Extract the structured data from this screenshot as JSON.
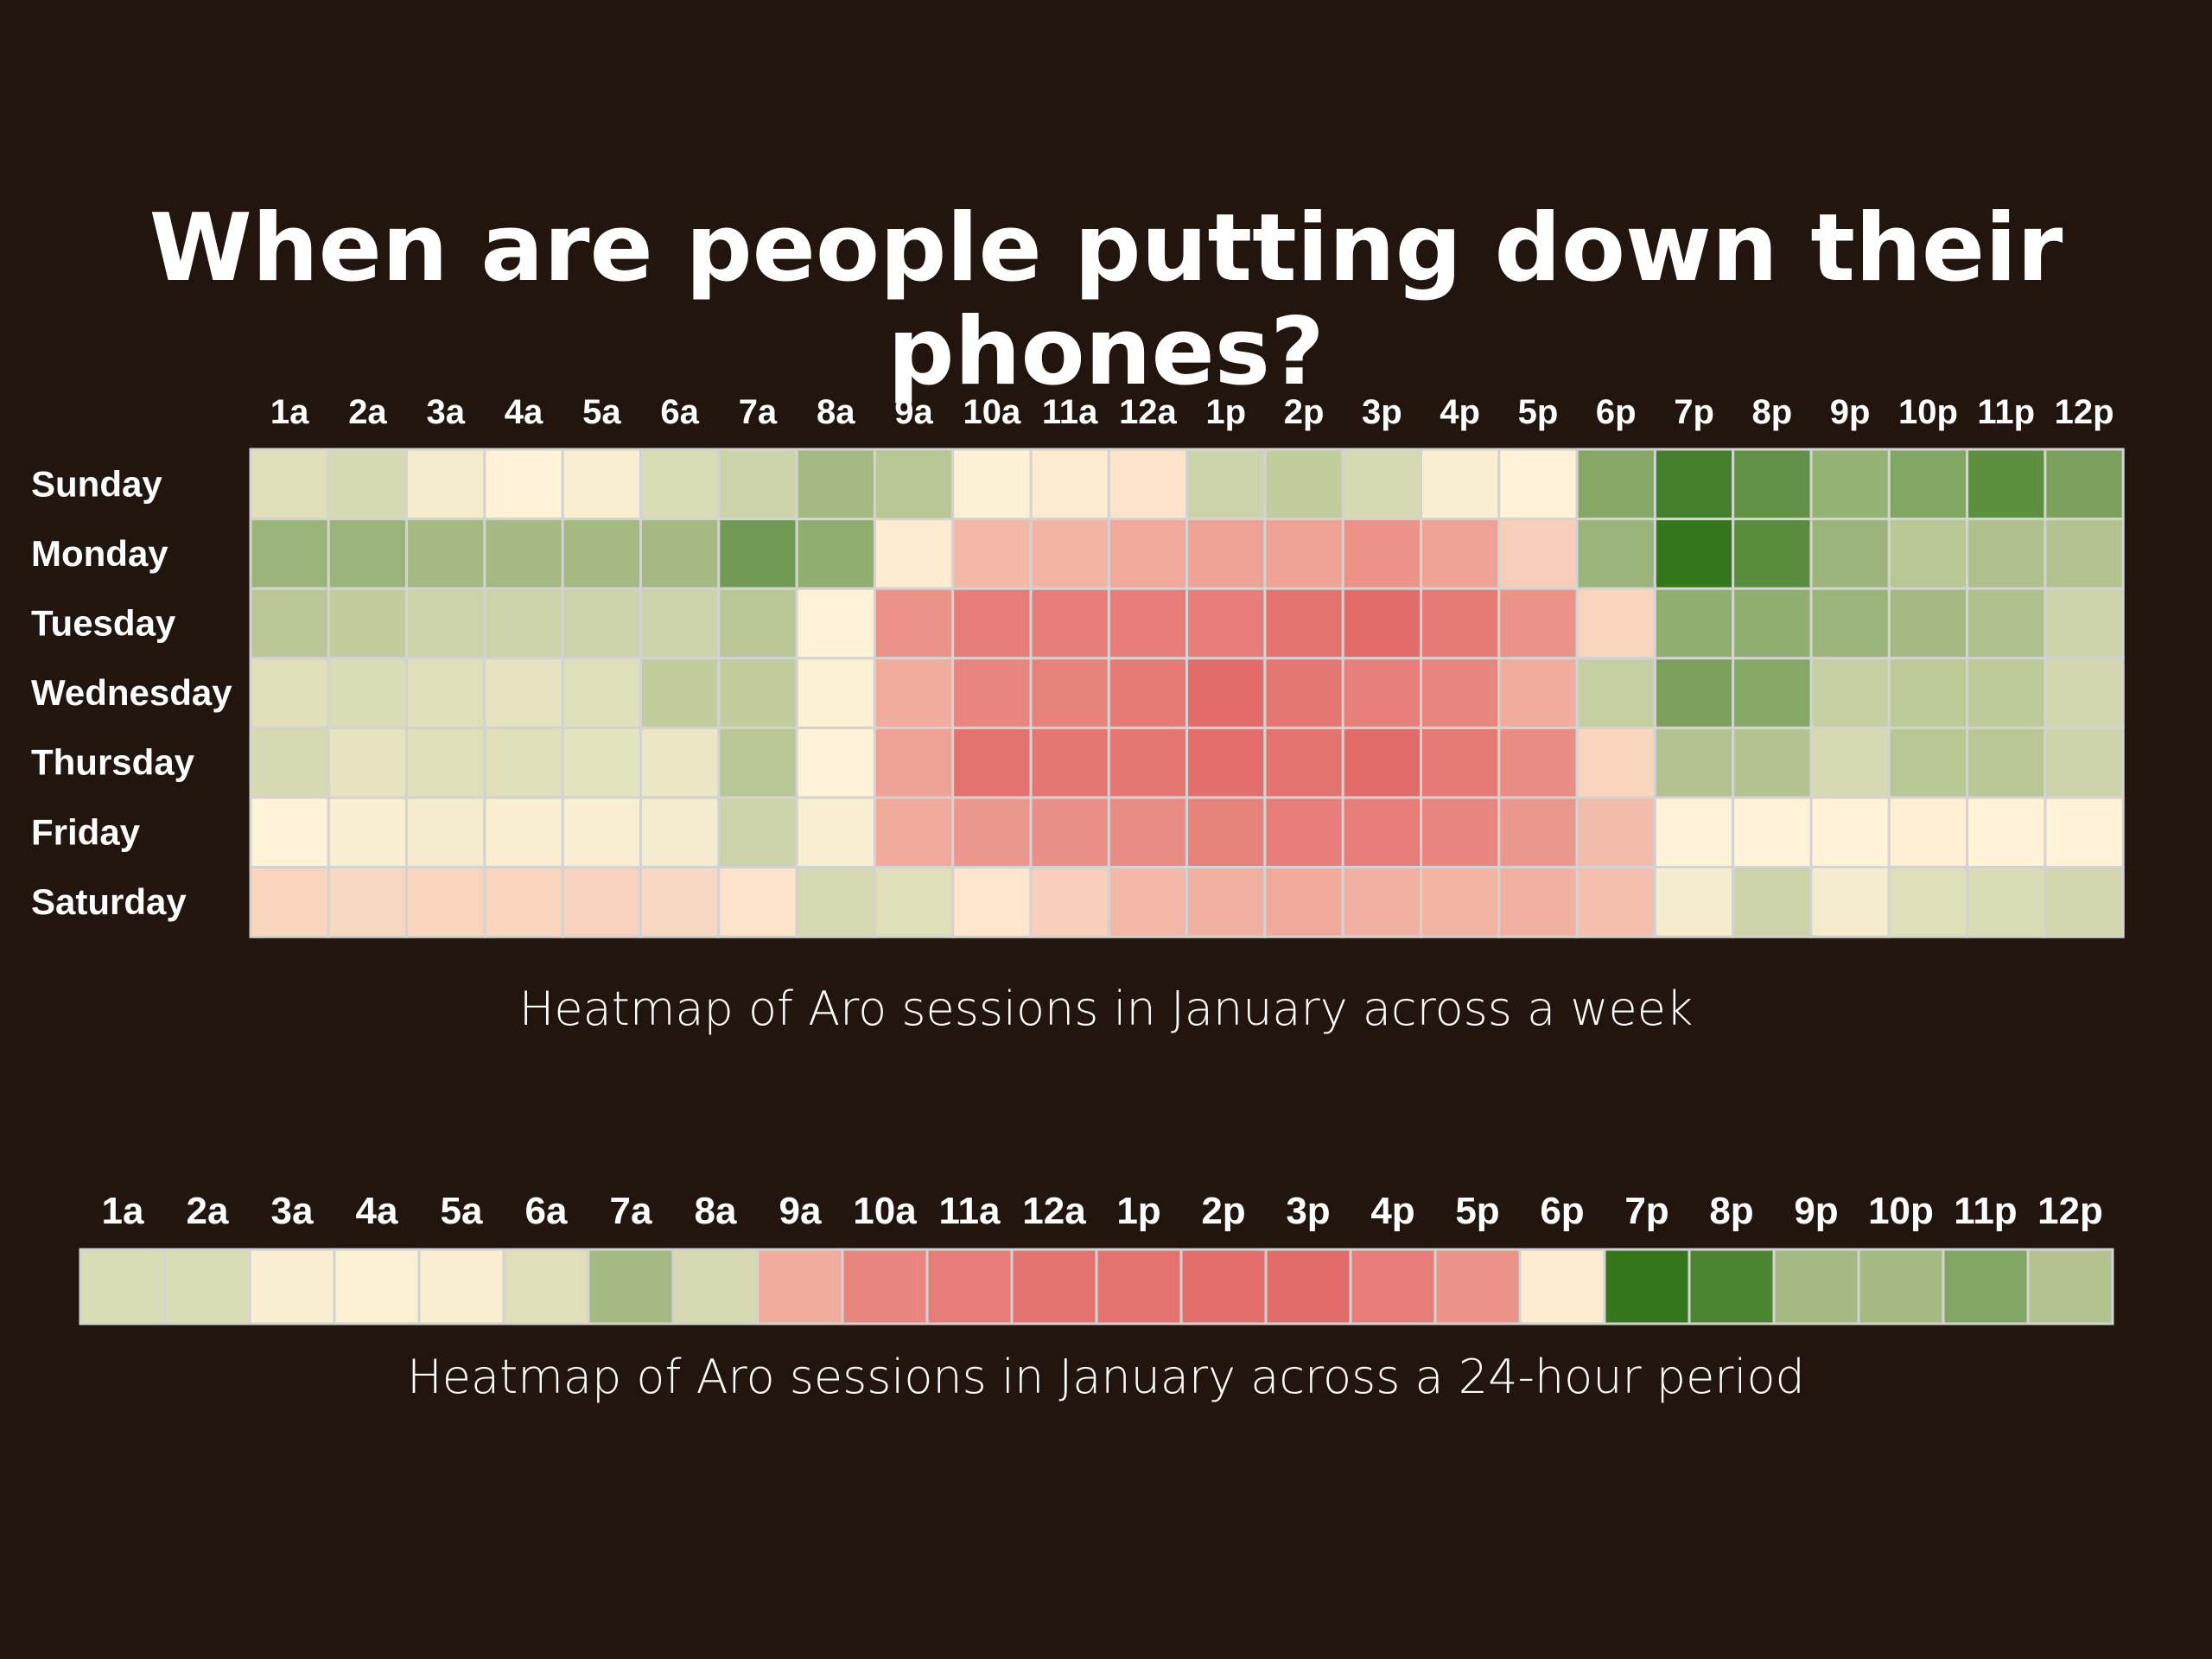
{
  "title": "When are people putting down their phones?",
  "scale_colors": {
    "low": "#e06060",
    "mid": "#fff2d6",
    "high": "#34761c"
  },
  "chart_data": [
    {
      "type": "heatmap",
      "caption": "Heatmap of Aro sessions in January across a week",
      "x": [
        "1a",
        "2a",
        "3a",
        "4a",
        "5a",
        "6a",
        "7a",
        "8a",
        "9a",
        "10a",
        "11a",
        "12a",
        "1p",
        "2p",
        "3p",
        "4p",
        "5p",
        "6p",
        "7p",
        "8p",
        "9p",
        "10p",
        "11p",
        "12p"
      ],
      "y": [
        "Sunday",
        "Monday",
        "Tuesday",
        "Wednesday",
        "Thursday",
        "Friday",
        "Saturday"
      ],
      "values": [
        [
          0.15,
          0.2,
          0.05,
          0.0,
          0.03,
          0.18,
          0.25,
          0.45,
          0.35,
          0.01,
          -0.05,
          -0.1,
          0.25,
          0.3,
          0.2,
          0.03,
          0.0,
          0.6,
          0.92,
          0.78,
          0.52,
          0.62,
          0.8,
          0.65
        ],
        [
          0.5,
          0.5,
          0.45,
          0.45,
          0.45,
          0.45,
          0.7,
          0.55,
          -0.05,
          -0.4,
          -0.42,
          -0.5,
          -0.55,
          -0.55,
          -0.65,
          -0.55,
          -0.25,
          0.5,
          1.0,
          0.82,
          0.5,
          0.35,
          0.4,
          0.38
        ],
        [
          0.35,
          0.3,
          0.25,
          0.25,
          0.25,
          0.25,
          0.35,
          0.0,
          -0.65,
          -0.8,
          -0.8,
          -0.8,
          -0.8,
          -0.88,
          -0.92,
          -0.82,
          -0.65,
          -0.2,
          0.55,
          0.55,
          0.5,
          0.45,
          0.4,
          0.25
        ],
        [
          0.15,
          0.18,
          0.15,
          0.12,
          0.15,
          0.3,
          0.3,
          0.02,
          -0.48,
          -0.75,
          -0.77,
          -0.82,
          -0.92,
          -0.85,
          -0.78,
          -0.75,
          -0.48,
          0.28,
          0.65,
          0.6,
          0.28,
          0.33,
          0.33,
          0.22
        ],
        [
          0.2,
          0.12,
          0.15,
          0.15,
          0.13,
          0.1,
          0.35,
          0.0,
          -0.55,
          -0.88,
          -0.85,
          -0.85,
          -0.9,
          -0.87,
          -0.92,
          -0.83,
          -0.7,
          -0.2,
          0.38,
          0.37,
          0.2,
          0.35,
          0.35,
          0.25
        ],
        [
          0.0,
          0.03,
          0.05,
          0.03,
          0.03,
          0.05,
          0.25,
          0.03,
          -0.5,
          -0.62,
          -0.68,
          -0.7,
          -0.77,
          -0.8,
          -0.8,
          -0.75,
          -0.62,
          -0.38,
          0.0,
          0.0,
          0.0,
          -0.03,
          0.0,
          0.0
        ],
        [
          -0.2,
          -0.18,
          -0.2,
          -0.2,
          -0.22,
          -0.18,
          -0.1,
          0.2,
          0.15,
          -0.08,
          -0.25,
          -0.4,
          -0.45,
          -0.5,
          -0.45,
          -0.42,
          -0.45,
          -0.35,
          0.05,
          0.25,
          0.05,
          0.15,
          0.18,
          0.22
        ]
      ]
    },
    {
      "type": "heatmap",
      "caption": "Heatmap of Aro sessions in January across a 24-hour period",
      "x": [
        "1a",
        "2a",
        "3a",
        "4a",
        "5a",
        "6a",
        "7a",
        "8a",
        "9a",
        "10a",
        "11a",
        "12a",
        "1p",
        "2p",
        "3p",
        "4p",
        "5p",
        "6p",
        "7p",
        "8p",
        "9p",
        "10p",
        "11p",
        "12p"
      ],
      "y": [],
      "values": [
        [
          0.18,
          0.18,
          0.03,
          0.02,
          0.03,
          0.15,
          0.45,
          0.2,
          -0.48,
          -0.75,
          -0.8,
          -0.87,
          -0.87,
          -0.9,
          -0.92,
          -0.8,
          -0.65,
          -0.05,
          1.0,
          0.88,
          0.45,
          0.45,
          0.62,
          0.38
        ]
      ]
    }
  ]
}
